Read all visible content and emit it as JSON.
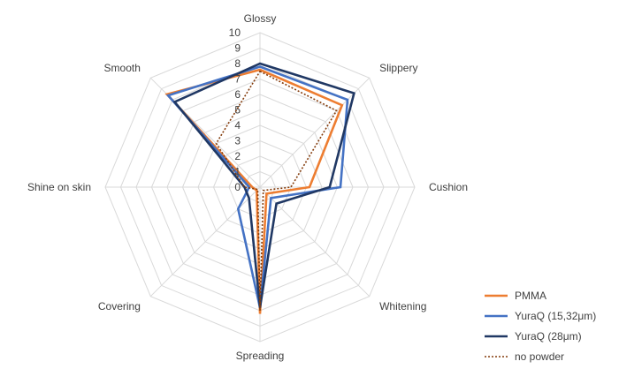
{
  "chart_data": {
    "type": "radar",
    "axes": [
      "Glossy",
      "Slippery",
      "Cushion",
      "Whitening",
      "Spreading",
      "Covering",
      "Shine on skin",
      "Smooth"
    ],
    "range": [
      0,
      10
    ],
    "ticks": [
      "0",
      "1",
      "2",
      "3",
      "4",
      "5",
      "6",
      "7",
      "8",
      "9",
      "10"
    ],
    "grid": true,
    "legend_position": "bottom-right",
    "series": [
      {
        "name": "PMMA",
        "color": "#ED7D31",
        "dash": "solid",
        "values": [
          7.6,
          7.5,
          3.2,
          0.6,
          8.2,
          0.3,
          0.5,
          8.5
        ]
      },
      {
        "name": "YuraQ (15,32μm)",
        "color": "#4472C4",
        "dash": "solid",
        "values": [
          7.8,
          8.0,
          5.2,
          1.0,
          7.8,
          2.0,
          0.7,
          8.4
        ]
      },
      {
        "name": "YuraQ (28μm)",
        "color": "#203864",
        "dash": "solid",
        "values": [
          8.0,
          8.6,
          4.5,
          1.5,
          7.8,
          1.0,
          1.0,
          7.8
        ]
      },
      {
        "name": "no powder",
        "color": "#843C0C",
        "dash": "dotted",
        "values": [
          7.5,
          7.0,
          2.0,
          0.3,
          8.0,
          0.2,
          1.0,
          4.0
        ]
      }
    ]
  }
}
